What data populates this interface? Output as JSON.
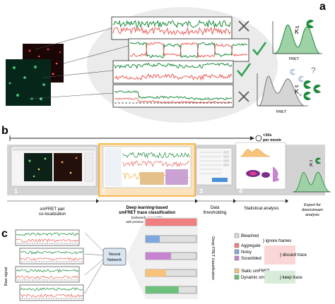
{
  "panels": {
    "a": {
      "letter": "a",
      "fret_label_top": "FRET",
      "fret_label_bottom": "FRET",
      "k_top": "K",
      "k_top_sup": "wt",
      "k_bottom": "K",
      "k_bottom_sub": "c",
      "k_bottom_sup": "wt",
      "question_mark": "?",
      "trace_marks": [
        "cross",
        "check",
        "check",
        "cross"
      ]
    },
    "b": {
      "letter": "b",
      "timing": "<10s",
      "timing_sub": "per movie",
      "steps": [
        {
          "num": "1",
          "label": "smFRET pair",
          "label2": "co-localization"
        },
        {
          "num": "2",
          "label": "Deep learning-based",
          "label2": "smFRET trace classification",
          "note": "backwards compatible",
          "note2": "with previously acquired data*"
        },
        {
          "num": "3",
          "label": "Data",
          "label2": "thresholding"
        },
        {
          "num": "4",
          "label": "Statistical analysis"
        }
      ],
      "export_label": "Export for",
      "export_label2": "downstream",
      "export_label3": "analysis",
      "k_label": "K",
      "k_sup": "wt"
    },
    "c": {
      "letter": "c",
      "raw_signal": "Raw signal",
      "network_line1": "Neural",
      "network_line2": "Network",
      "classification": "Deep FRET classification",
      "legend": [
        {
          "label": "Bleached",
          "color": "#d9d9d9"
        },
        {
          "label": "Aggregate",
          "color": "#f08080"
        },
        {
          "label": "Noisy",
          "color": "#7fa8e0"
        },
        {
          "label": "Scrambled",
          "color": "#c784d1"
        },
        {
          "label": "Static smFRET",
          "color": "#f7c27a"
        },
        {
          "label": "Dynamic smFRET",
          "color": "#6cc07a"
        }
      ],
      "groups": [
        {
          "label": "} ignore frames"
        },
        {
          "label": "} discard trace"
        },
        {
          "label": "} keep trace"
        }
      ],
      "bar_fractions": [
        1.0,
        0.28,
        0.5,
        0.4,
        0.65
      ]
    }
  },
  "colors": {
    "donor": "#1b8a3a",
    "acceptor": "#e8605a",
    "highlight": "#f5a623",
    "ellipse": "#e8e8e8"
  }
}
